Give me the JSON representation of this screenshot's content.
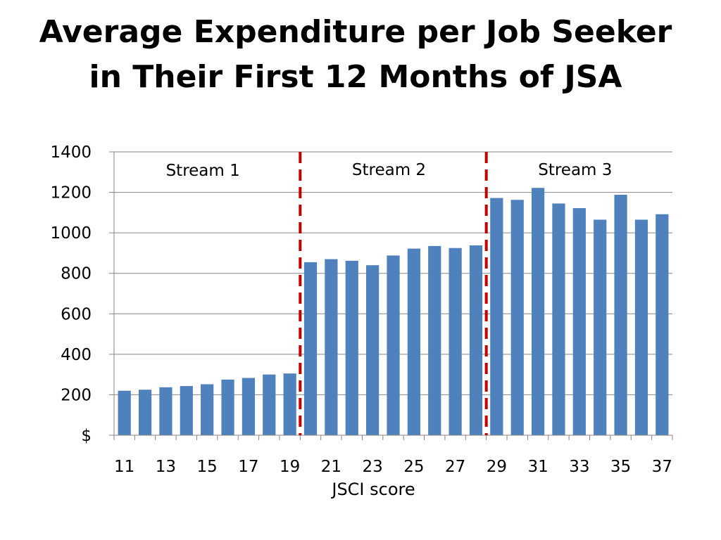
{
  "chart_data": {
    "type": "bar",
    "title_lines": [
      "Average Expenditure per Job Seeker",
      "in Their First 12 Months of JSA"
    ],
    "xlabel": "JSCI score",
    "ylabel": "",
    "ylim": [
      0,
      1400
    ],
    "y_ticks": [
      0,
      200,
      400,
      600,
      800,
      1000,
      1200,
      1400
    ],
    "y_tick_labels": [
      "$",
      "200",
      "400",
      "600",
      "800",
      "1000",
      "1200",
      "1400"
    ],
    "categories": [
      11,
      12,
      13,
      14,
      15,
      16,
      17,
      18,
      19,
      20,
      21,
      22,
      23,
      24,
      25,
      26,
      27,
      28,
      29,
      30,
      31,
      32,
      33,
      34,
      35,
      36,
      37
    ],
    "x_tick_labels": [
      "11",
      "13",
      "15",
      "17",
      "19",
      "21",
      "23",
      "25",
      "27",
      "29",
      "31",
      "33",
      "35",
      "37"
    ],
    "values": [
      220,
      225,
      237,
      243,
      252,
      275,
      283,
      300,
      305,
      855,
      870,
      862,
      840,
      888,
      922,
      935,
      925,
      938,
      1172,
      1163,
      1222,
      1145,
      1122,
      1065,
      1188,
      1065,
      1092
    ],
    "grid": true,
    "bar_color": "#4F81BD",
    "divider_color": "#C00000",
    "dividers_after_category": [
      19,
      28
    ],
    "streams": [
      {
        "label": "Stream 1"
      },
      {
        "label": "Stream 2"
      },
      {
        "label": "Stream 3"
      }
    ]
  }
}
